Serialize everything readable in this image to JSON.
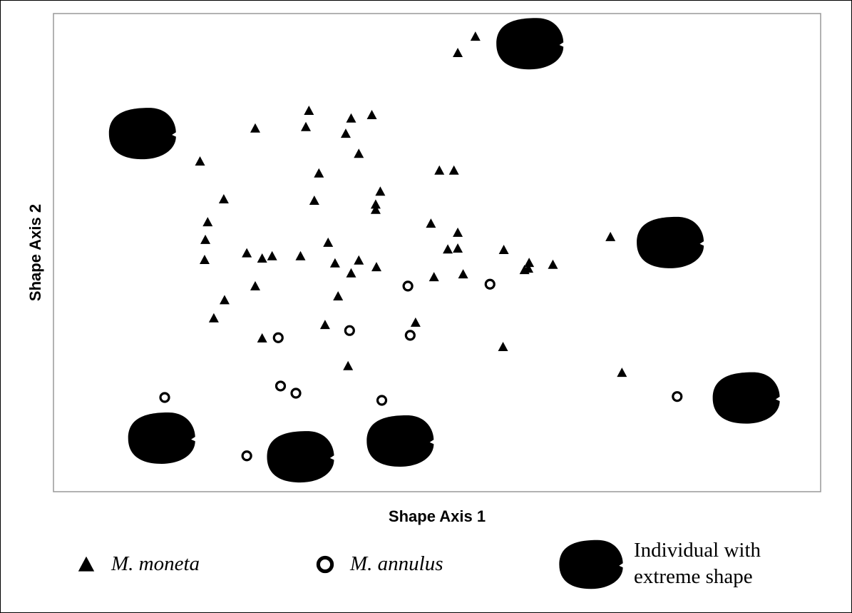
{
  "chart_data": {
    "type": "scatter",
    "xlabel": "Shape Axis 1",
    "ylabel": "Shape Axis 2",
    "xlim": [
      0,
      100
    ],
    "ylim": [
      0,
      100
    ],
    "grid": false,
    "series": [
      {
        "name": "M. moneta",
        "color": "#000000",
        "marker": "triangle",
        "x": [
          55.0,
          52.7,
          33.3,
          38.8,
          41.5,
          26.3,
          32.9,
          38.1,
          39.8,
          19.1,
          34.6,
          50.3,
          52.2,
          42.6,
          22.2,
          34.0,
          42.0,
          42.0,
          20.1,
          49.2,
          52.7,
          19.8,
          35.8,
          51.4,
          52.7,
          72.6,
          25.2,
          27.2,
          28.5,
          32.2,
          58.7,
          19.7,
          36.7,
          39.8,
          42.1,
          62.0,
          61.9,
          61.4,
          65.1,
          38.8,
          53.4,
          49.6,
          26.3,
          37.1,
          22.3,
          47.2,
          20.9,
          35.4,
          27.2,
          58.6,
          38.4,
          74.1
        ],
        "y": [
          95.2,
          91.8,
          79.7,
          78.1,
          78.8,
          76.0,
          76.3,
          74.9,
          70.7,
          69.1,
          66.6,
          67.2,
          67.2,
          62.8,
          61.2,
          60.9,
          60.1,
          59.0,
          56.4,
          56.1,
          54.2,
          52.7,
          52.1,
          50.7,
          50.9,
          53.3,
          49.9,
          48.8,
          49.3,
          49.3,
          50.6,
          48.5,
          47.8,
          48.4,
          47.0,
          47.9,
          46.7,
          46.4,
          47.5,
          45.7,
          45.5,
          44.9,
          43.0,
          40.9,
          40.1,
          35.4,
          36.3,
          34.9,
          32.1,
          30.3,
          26.3,
          24.9
        ]
      },
      {
        "name": "M. annulus",
        "color": "#000000",
        "marker": "circle",
        "x": [
          46.2,
          56.9,
          29.3,
          38.6,
          46.5,
          14.5,
          29.6,
          31.6,
          42.8,
          81.3,
          25.2
        ],
        "y": [
          43.0,
          43.4,
          32.2,
          33.7,
          32.7,
          19.7,
          22.1,
          20.6,
          19.1,
          19.9,
          7.5
        ]
      },
      {
        "name": "Individual with extreme shape",
        "color": "#000000",
        "marker": "shell",
        "x": [
          62.1,
          11.6,
          80.4,
          90.3,
          14.1,
          32.2,
          45.2
        ],
        "y": [
          93.7,
          74.9,
          52.1,
          19.6,
          11.2,
          7.3,
          10.6
        ]
      }
    ]
  }
}
